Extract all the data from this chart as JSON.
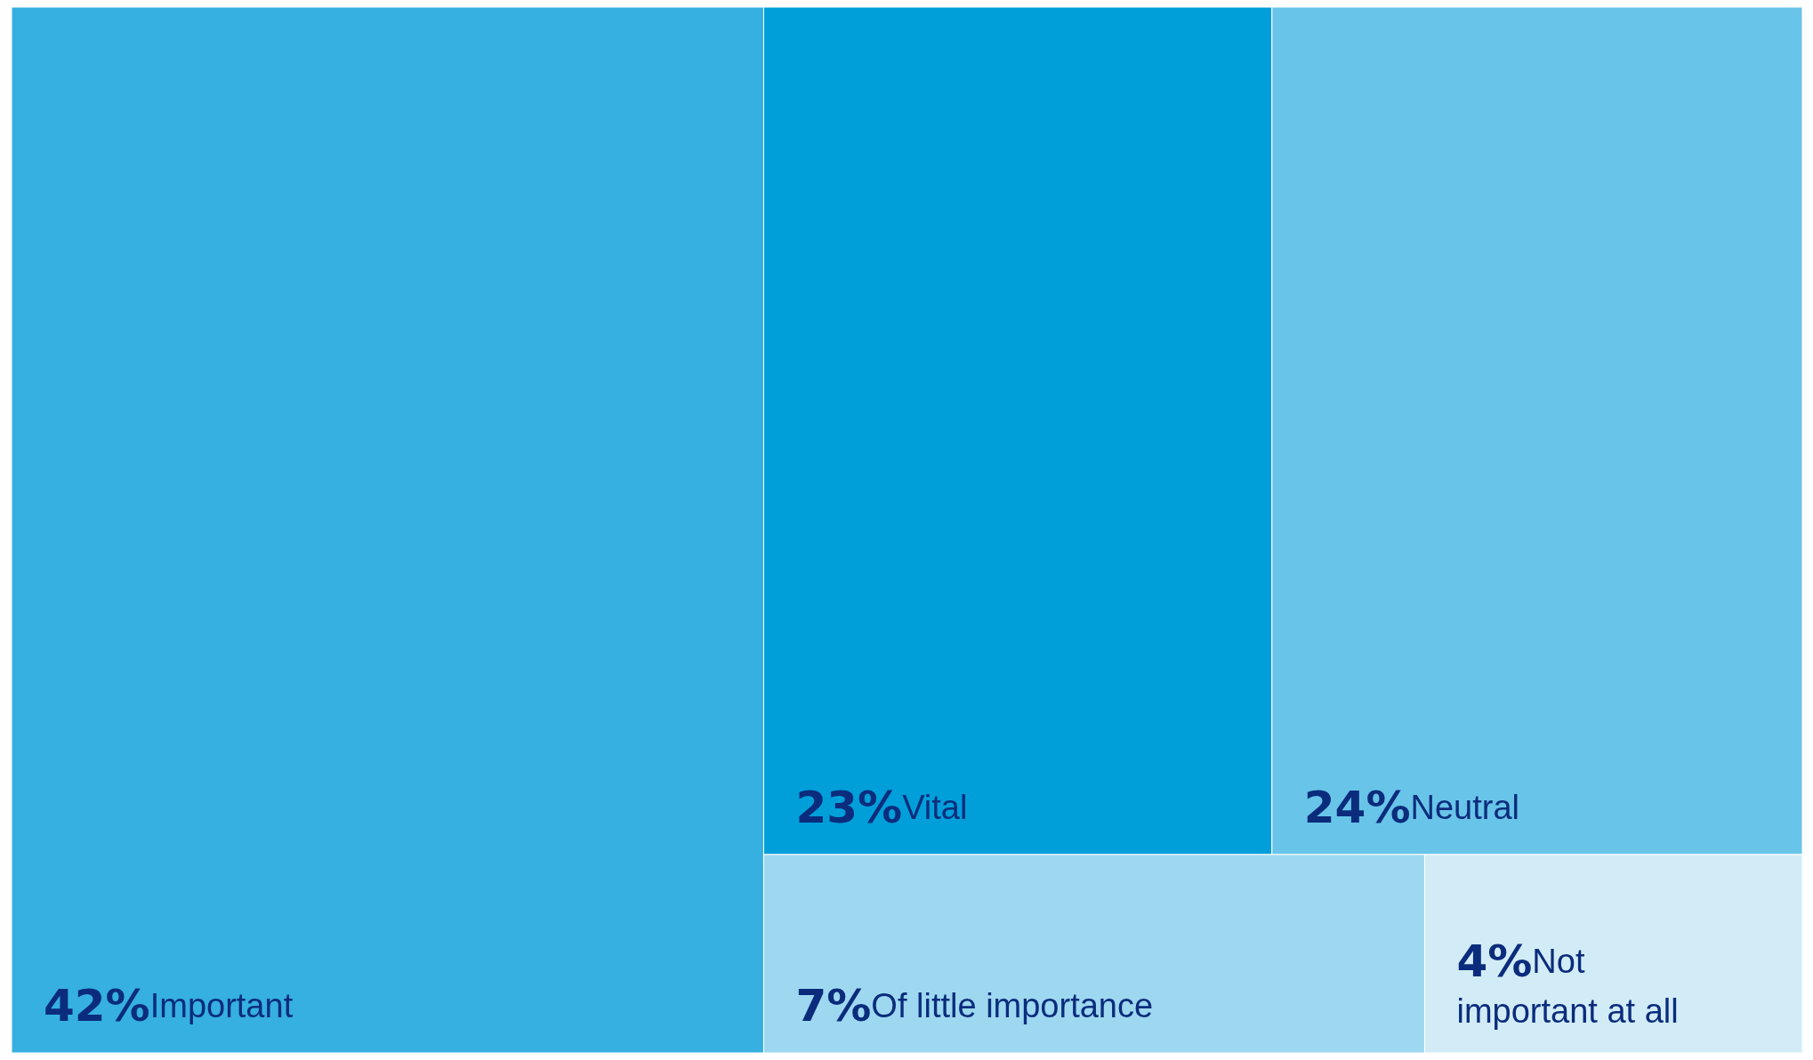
{
  "chart_data": {
    "type": "other",
    "categories": [
      "Important",
      "Vital",
      "Neutral",
      "Of little importance",
      "Not important at all"
    ],
    "values": [
      42,
      23,
      24,
      7,
      4
    ],
    "value_labels": [
      "42%",
      "23%",
      "24%",
      "7%",
      "4%"
    ],
    "colors": [
      "#35b0e0",
      "#009fda",
      "#68c4e8",
      "#9dd8f0",
      "#d1ecf6"
    ]
  }
}
